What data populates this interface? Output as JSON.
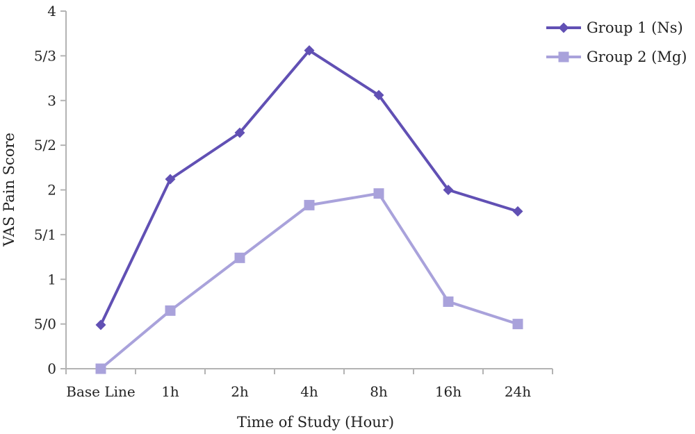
{
  "chart_data": {
    "type": "line",
    "title": "",
    "xlabel": "Time of Study (Hour)",
    "ylabel": "VAS Pain Score",
    "categories": [
      "Base Line",
      "1h",
      "2h",
      "4h",
      "8h",
      "16h",
      "24h"
    ],
    "ylim": [
      0,
      4
    ],
    "y_ticks": [
      0,
      0.5,
      1,
      1.5,
      2,
      2.5,
      3,
      3.5,
      4
    ],
    "y_tick_labels": [
      "0",
      "5/0",
      "1",
      "5/1",
      "2",
      "5/2",
      "3",
      "5/3",
      "4"
    ],
    "grid": false,
    "legend_position": "top-right",
    "series": [
      {
        "name": "Group 1 (Ns)",
        "values": [
          0.49,
          2.12,
          2.64,
          3.56,
          3.06,
          2.0,
          1.76
        ],
        "color": "#6150b4",
        "marker": "diamond"
      },
      {
        "name": "Group 2 (Mg)",
        "values": [
          0.0,
          0.65,
          1.24,
          1.83,
          1.96,
          0.75,
          0.5
        ],
        "color": "#a9a2db",
        "marker": "square"
      }
    ]
  }
}
